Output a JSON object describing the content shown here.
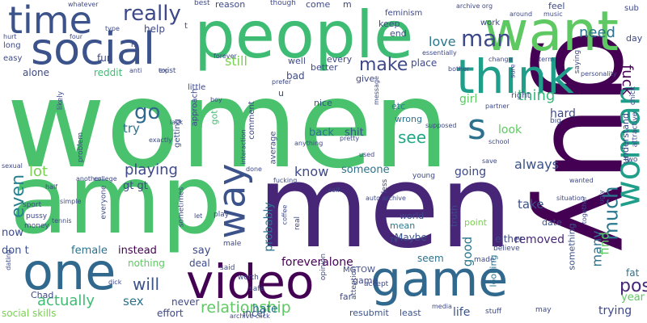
{
  "words": [
    {
      "text": "women",
      "color": "#4ac16d"
    },
    {
      "text": "men",
      "color": "#482677"
    },
    {
      "text": "amp",
      "color": "#4ac16d"
    },
    {
      "text": "guy",
      "color": "#440154"
    },
    {
      "text": "people",
      "color": "#3fbc73"
    },
    {
      "text": "want",
      "color": "#5ec962"
    },
    {
      "text": "game",
      "color": "#31688e"
    },
    {
      "text": "video",
      "color": "#440154"
    },
    {
      "text": "think",
      "color": "#1f9e89"
    },
    {
      "text": "social",
      "color": "#3b528b"
    },
    {
      "text": "one",
      "color": "#31688e"
    },
    {
      "text": "time",
      "color": "#3b528b"
    },
    {
      "text": "way",
      "color": "#3b528b"
    },
    {
      "text": "woman",
      "color": "#1f9e89"
    },
    {
      "text": "s",
      "color": "#2c728e"
    },
    {
      "text": "man",
      "color": "#3e4989"
    },
    {
      "text": "really",
      "color": "#3e4989"
    },
    {
      "text": "make",
      "color": "#3e4989"
    },
    {
      "text": "know",
      "color": "#3e4989"
    },
    {
      "text": "relationship",
      "color": "#5ec962"
    },
    {
      "text": "much",
      "color": "#2a788e"
    },
    {
      "text": "post",
      "color": "#482878"
    },
    {
      "text": "even",
      "color": "#26828e"
    },
    {
      "text": "go",
      "color": "#31688e"
    },
    {
      "text": "see",
      "color": "#22a884"
    },
    {
      "text": "playing",
      "color": "#3e4989"
    },
    {
      "text": "thing",
      "color": "#35b779"
    },
    {
      "text": "fuck",
      "color": "#440154"
    },
    {
      "text": "love",
      "color": "#2a788e"
    },
    {
      "text": "still",
      "color": "#7ad151"
    },
    {
      "text": "need",
      "color": "#2c728e"
    },
    {
      "text": "lot",
      "color": "#7ad151"
    },
    {
      "text": "always",
      "color": "#3b528b"
    },
    {
      "text": "many",
      "color": "#2c728e"
    },
    {
      "text": "will",
      "color": "#3b528b"
    },
    {
      "text": "actually",
      "color": "#3fbc73"
    },
    {
      "text": "sex",
      "color": "#2c728e"
    },
    {
      "text": "try",
      "color": "#2c728e"
    },
    {
      "text": "someone",
      "color": "#2c728e"
    },
    {
      "text": "going",
      "color": "#3e4989"
    },
    {
      "text": "take",
      "color": "#3b528b"
    },
    {
      "text": "probably",
      "color": "#2c728e"
    },
    {
      "text": "find",
      "color": "#5ec962"
    },
    {
      "text": "good",
      "color": "#2a788e"
    },
    {
      "text": "removed",
      "color": "#482878"
    },
    {
      "text": "hard",
      "color": "#3e4989"
    },
    {
      "text": "look",
      "color": "#5ec962"
    },
    {
      "text": "girl",
      "color": "#5ec962"
    },
    {
      "text": "bad",
      "color": "#3e4989"
    },
    {
      "text": "shit",
      "color": "#3b528b"
    },
    {
      "text": "back",
      "color": "#2c728e"
    },
    {
      "text": "year",
      "color": "#5ec962"
    },
    {
      "text": "trying",
      "color": "#3e4989"
    },
    {
      "text": "hate",
      "color": "#2a788e"
    },
    {
      "text": "life",
      "color": "#3b528b"
    },
    {
      "text": "fat",
      "color": "#2c728e"
    },
    {
      "text": "foreveralone",
      "color": "#440154"
    },
    {
      "text": "say",
      "color": "#3e4989"
    },
    {
      "text": "female",
      "color": "#2c728e"
    },
    {
      "text": "instead",
      "color": "#440154"
    },
    {
      "text": "don t",
      "color": "#3b528b"
    },
    {
      "text": "gt gt",
      "color": "#3e4989"
    },
    {
      "text": "now",
      "color": "#3e4989"
    },
    {
      "text": "seem",
      "color": "#2c728e"
    },
    {
      "text": "Maybe",
      "color": "#3b528b"
    },
    {
      "text": "either",
      "color": "#3e4989"
    },
    {
      "text": "made",
      "color": "#3e4989"
    },
    {
      "text": "nothing",
      "color": "#5ec962"
    },
    {
      "text": "deal",
      "color": "#3e4989"
    },
    {
      "text": "social skills",
      "color": "#7ad151"
    },
    {
      "text": "effort",
      "color": "#3e4989"
    },
    {
      "text": "never",
      "color": "#3e4989"
    },
    {
      "text": "incel",
      "color": "#3b528b"
    },
    {
      "text": "far",
      "color": "#3e4989"
    },
    {
      "text": "resubmit",
      "color": "#3b528b"
    },
    {
      "text": "least",
      "color": "#3b528b"
    },
    {
      "text": "game",
      "color": "#3e4989"
    },
    {
      "text": "MGTOW",
      "color": "#3e4989"
    },
    {
      "text": "world",
      "color": "#3e4989"
    },
    {
      "text": "mean",
      "color": "#2a788e"
    },
    {
      "text": "truth",
      "color": "#3e4989"
    },
    {
      "text": "point",
      "color": "#7ad151"
    },
    {
      "text": "date",
      "color": "#3b528b"
    },
    {
      "text": "understand",
      "color": "#3e4989"
    },
    {
      "text": "something",
      "color": "#3b528b"
    },
    {
      "text": "looking",
      "color": "#2c728e"
    },
    {
      "text": "Chad",
      "color": "#3e4989"
    },
    {
      "text": "etc",
      "color": "#26828e"
    },
    {
      "text": "wrong",
      "color": "#2c728e"
    },
    {
      "text": "nice",
      "color": "#3b528b"
    },
    {
      "text": "u",
      "color": "#3e4989"
    },
    {
      "text": "got",
      "color": "#3fbc73"
    },
    {
      "text": "approach",
      "color": "#3e4989"
    },
    {
      "text": "getting",
      "color": "#3b528b"
    },
    {
      "text": "average",
      "color": "#3e4989"
    },
    {
      "text": "comment",
      "color": "#3e4989"
    },
    {
      "text": "reddit",
      "color": "#3fbc73"
    },
    {
      "text": "alone",
      "color": "#3e4989"
    },
    {
      "text": "fun",
      "color": "#3e4989"
    },
    {
      "text": "help",
      "color": "#3e4989"
    },
    {
      "text": "little",
      "color": "#3e4989"
    },
    {
      "text": "well",
      "color": "#3e4989"
    },
    {
      "text": "better",
      "color": "#3e4989"
    },
    {
      "text": "every",
      "color": "#3e4989"
    },
    {
      "text": "give",
      "color": "#3e4989"
    },
    {
      "text": "place",
      "color": "#3e4989"
    },
    {
      "text": "keep",
      "color": "#3e4989"
    },
    {
      "text": "end",
      "color": "#3e4989"
    },
    {
      "text": "come",
      "color": "#3e4989"
    },
    {
      "text": "reason",
      "color": "#3e4989"
    },
    {
      "text": "feminism",
      "color": "#3e4989"
    },
    {
      "text": "work",
      "color": "#3e4989"
    },
    {
      "text": "feel",
      "color": "#3e4989"
    },
    {
      "text": "day",
      "color": "#3e4989"
    },
    {
      "text": "sub",
      "color": "#3e4989"
    },
    {
      "text": "right",
      "color": "#3e4989"
    },
    {
      "text": "attention",
      "color": "#3e4989"
    },
    {
      "text": "opinion",
      "color": "#3e4989"
    },
    {
      "text": "real",
      "color": "#3e4989"
    },
    {
      "text": "less",
      "color": "#3e4989"
    },
    {
      "text": "young",
      "color": "#3e4989"
    },
    {
      "text": "play",
      "color": "#3e4989"
    },
    {
      "text": "sport",
      "color": "#3e4989"
    },
    {
      "text": "pussy",
      "color": "#3e4989"
    },
    {
      "text": "everyone",
      "color": "#3e4989"
    },
    {
      "text": "money",
      "color": "#3e4989"
    },
    {
      "text": "sometimes",
      "color": "#3e4989"
    },
    {
      "text": "male",
      "color": "#3e4989"
    },
    {
      "text": "said",
      "color": "#3e4989"
    },
    {
      "text": "worth",
      "color": "#3e4989"
    },
    {
      "text": "safe",
      "color": "#3e4989"
    },
    {
      "text": "accept",
      "color": "#3e4989"
    },
    {
      "text": "may",
      "color": "#3e4989"
    },
    {
      "text": "stuff",
      "color": "#3e4989"
    },
    {
      "text": "believe",
      "color": "#3e4989"
    },
    {
      "text": "two",
      "color": "#3e4989"
    },
    {
      "text": "chick",
      "color": "#3e4989"
    },
    {
      "text": "attractive",
      "color": "#3e4989"
    },
    {
      "text": "long",
      "color": "#3e4989"
    },
    {
      "text": "easy",
      "color": "#3e4989"
    },
    {
      "text": "likely",
      "color": "#3e4989"
    },
    {
      "text": "problem",
      "color": "#3e4989"
    },
    {
      "text": "exist",
      "color": "#3e4989"
    },
    {
      "text": "t",
      "color": "#3e4989"
    },
    {
      "text": "m",
      "color": "#3e4989"
    },
    {
      "text": "best",
      "color": "#3e4989"
    },
    {
      "text": "though",
      "color": "#3e4989"
    },
    {
      "text": "whatever",
      "color": "#3e4989"
    },
    {
      "text": "hurt",
      "color": "#3e4989"
    },
    {
      "text": "four",
      "color": "#3e4989"
    },
    {
      "text": "type",
      "color": "#3e4989"
    },
    {
      "text": "FA",
      "color": "#3e4989"
    },
    {
      "text": "anti",
      "color": "#3e4989"
    },
    {
      "text": "top",
      "color": "#3e4989"
    },
    {
      "text": "forever",
      "color": "#3e4989"
    },
    {
      "text": "boy",
      "color": "#3e4989"
    },
    {
      "text": "lack",
      "color": "#3e4989"
    },
    {
      "text": "prefer",
      "color": "#3e4989"
    },
    {
      "text": "message",
      "color": "#3e4989"
    },
    {
      "text": "essentially",
      "color": "#3e4989"
    },
    {
      "text": "archive org",
      "color": "#3e4989"
    },
    {
      "text": "around",
      "color": "#3e4989"
    },
    {
      "text": "music",
      "color": "#3e4989"
    },
    {
      "text": "change",
      "color": "#3e4989"
    },
    {
      "text": "term",
      "color": "#3e4989"
    },
    {
      "text": "personality",
      "color": "#3e4989"
    },
    {
      "text": "bother",
      "color": "#3e4989"
    },
    {
      "text": "saying",
      "color": "#3e4989"
    },
    {
      "text": "sure",
      "color": "#3e4989"
    },
    {
      "text": "partner",
      "color": "#3e4989"
    },
    {
      "text": "big",
      "color": "#3e4989"
    },
    {
      "text": "school",
      "color": "#3e4989"
    },
    {
      "text": "supposed",
      "color": "#3e4989"
    },
    {
      "text": "pretty",
      "color": "#3e4989"
    },
    {
      "text": "anything",
      "color": "#3e4989"
    },
    {
      "text": "interaction",
      "color": "#3e4989"
    },
    {
      "text": "exactly",
      "color": "#3e4989"
    },
    {
      "text": "half",
      "color": "#3e4989"
    },
    {
      "text": "sexual",
      "color": "#3e4989"
    },
    {
      "text": "another",
      "color": "#3e4989"
    },
    {
      "text": "college",
      "color": "#3e4989"
    },
    {
      "text": "simple",
      "color": "#3e4989"
    },
    {
      "text": "fucking",
      "color": "#3e4989"
    },
    {
      "text": "done",
      "color": "#3e4989"
    },
    {
      "text": "self",
      "color": "#3e4989"
    },
    {
      "text": "auto archive",
      "color": "#3e4989"
    },
    {
      "text": "used",
      "color": "#3e4989"
    },
    {
      "text": "save",
      "color": "#3e4989"
    },
    {
      "text": "situation",
      "color": "#3e4989"
    },
    {
      "text": "wanted",
      "color": "#3e4989"
    },
    {
      "text": "together",
      "color": "#3e4989"
    },
    {
      "text": "ugly",
      "color": "#3e4989"
    },
    {
      "text": "TV",
      "color": "#3e4989"
    },
    {
      "text": "let",
      "color": "#3e4989"
    },
    {
      "text": "coffee",
      "color": "#3e4989"
    },
    {
      "text": "dating",
      "color": "#3e4989"
    },
    {
      "text": "dick",
      "color": "#3e4989"
    },
    {
      "text": "media",
      "color": "#3e4989"
    },
    {
      "text": "archive click",
      "color": "#3e4989"
    },
    {
      "text": "tennis",
      "color": "#3e4989"
    }
  ]
}
